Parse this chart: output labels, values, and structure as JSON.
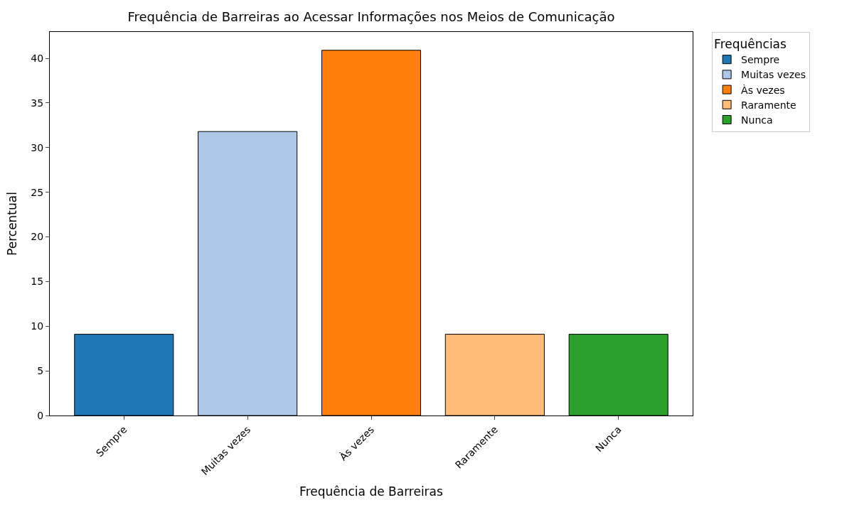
{
  "chart_data": {
    "type": "bar",
    "title": "Frequência de Barreiras ao Acessar Informações nos Meios de Comunicação",
    "xlabel": "Frequência de Barreiras",
    "ylabel": "Percentual",
    "legend_title": "Frequências",
    "categories": [
      "Sempre",
      "Muitas vezes",
      "Às vezes",
      "Raramente",
      "Nunca"
    ],
    "stacked": true,
    "series": [
      {
        "name": "Sempre",
        "color": "#1f77b4",
        "values": [
          9.1,
          null,
          null,
          null,
          null
        ]
      },
      {
        "name": "Muitas vezes",
        "color": "#aec7e8",
        "values": [
          null,
          31.8,
          null,
          null,
          null
        ]
      },
      {
        "name": "Às vezes",
        "color": "#ff7f0e",
        "values": [
          null,
          null,
          40.9,
          null,
          null
        ]
      },
      {
        "name": "Raramente",
        "color": "#ffbb78",
        "values": [
          null,
          null,
          null,
          9.1,
          null
        ]
      },
      {
        "name": "Nunca",
        "color": "#2ca02c",
        "values": [
          null,
          null,
          null,
          null,
          9.1
        ]
      }
    ],
    "ylim": [
      0,
      42.95
    ],
    "yticks": [
      0,
      5,
      10,
      15,
      20,
      25,
      30,
      35,
      40
    ],
    "legend": "top right"
  }
}
